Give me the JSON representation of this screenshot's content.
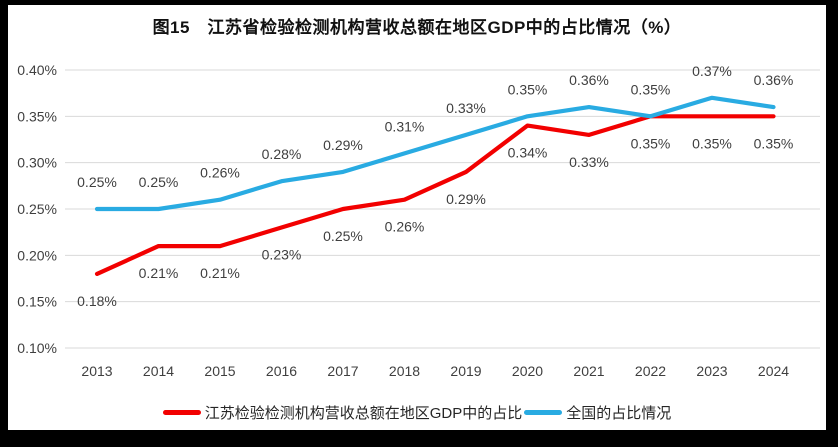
{
  "page": {
    "background_color": "#000000",
    "panel_color": "#ffffff"
  },
  "chart_data": {
    "type": "line",
    "title": "图15　江苏省检验检测机构营收总额在地区GDP中的占比情况（%）",
    "categories": [
      "2013",
      "2014",
      "2015",
      "2016",
      "2017",
      "2018",
      "2019",
      "2020",
      "2021",
      "2022",
      "2023",
      "2024"
    ],
    "series": [
      {
        "name": "江苏检验检测机构营收总额在地区GDP中的占比",
        "color": "#F20000",
        "values": [
          0.18,
          0.21,
          0.21,
          0.23,
          0.25,
          0.26,
          0.29,
          0.34,
          0.33,
          0.35,
          0.35,
          0.35
        ],
        "labels": [
          "0.18%",
          "0.21%",
          "0.21%",
          "0.23%",
          "0.25%",
          "0.26%",
          "0.29%",
          "0.34%",
          "0.33%",
          "0.35%",
          "0.35%",
          "0.35%"
        ],
        "label_position": "below"
      },
      {
        "name": "全国的占比情况",
        "color": "#29ABE2",
        "values": [
          0.25,
          0.25,
          0.26,
          0.28,
          0.29,
          0.31,
          0.33,
          0.35,
          0.36,
          0.35,
          0.37,
          0.36
        ],
        "labels": [
          "0.25%",
          "0.25%",
          "0.26%",
          "0.28%",
          "0.29%",
          "0.31%",
          "0.33%",
          "0.35%",
          "0.36%",
          "0.35%",
          "0.37%",
          "0.36%"
        ],
        "label_position": "above"
      }
    ],
    "y_axis": {
      "min": 0.1,
      "max": 0.4,
      "step": 0.05,
      "tick_labels": [
        "0.40%",
        "0.35%",
        "0.30%",
        "0.25%",
        "0.20%",
        "0.15%",
        "0.10%"
      ]
    },
    "grid": true,
    "gridline_color": "#D9D9D9",
    "tick_text_color": "#3F3F3F",
    "data_label_color": "#3F3F3F",
    "legend_position": "bottom"
  }
}
